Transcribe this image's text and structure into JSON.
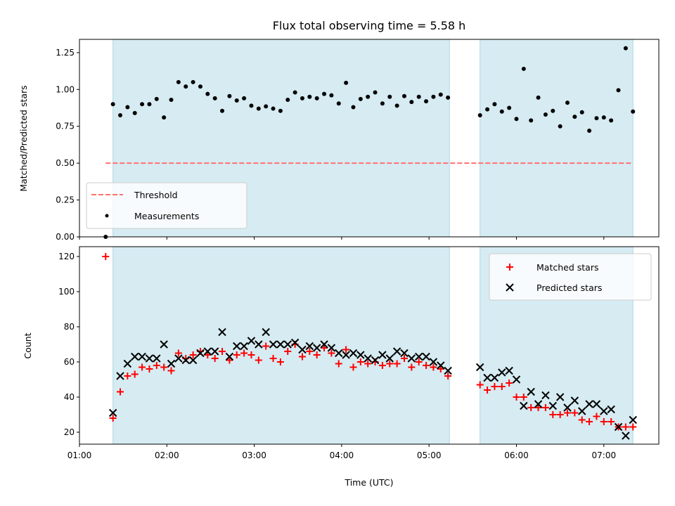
{
  "chart_data": [
    {
      "type": "scatter",
      "title": "Flux total observing time = 5.58 h",
      "xlabel": "",
      "ylabel": "Matched/Predicted stars",
      "ylim": [
        0,
        1.34
      ],
      "xlim_hours": [
        1.0,
        7.63
      ],
      "yticks": [
        "0.00",
        "0.25",
        "0.50",
        "0.75",
        "1.00",
        "1.25"
      ],
      "ytick_values": [
        0,
        0.25,
        0.5,
        0.75,
        1.0,
        1.25
      ],
      "shaded_spans": [
        [
          "01:23",
          "05:14"
        ],
        [
          "05:35",
          "07:20"
        ]
      ],
      "threshold": {
        "label": "Threshold",
        "value": 0.5,
        "from": "01:18",
        "to": "07:20",
        "color": "#ff7070"
      },
      "legend": {
        "placement": "lower-left",
        "entries": [
          "Threshold",
          "Measurements"
        ]
      },
      "series": [
        {
          "name": "Measurements",
          "color": "#000000",
          "segments": [
            {
              "start": "01:18",
              "step_min": 5,
              "values": [
                0.0,
                0.9,
                0.825,
                0.88,
                0.84,
                0.9,
                0.9,
                0.935,
                0.81,
                0.93,
                1.05,
                1.02,
                1.05,
                1.02,
                0.97,
                0.94,
                0.855,
                0.955,
                0.925,
                0.94,
                0.89,
                0.87,
                0.885,
                0.87,
                0.855,
                0.93,
                0.98,
                0.94,
                0.95,
                0.94,
                0.97,
                0.96,
                0.905,
                1.045,
                0.88,
                0.935,
                0.95,
                0.98,
                0.905,
                0.95,
                0.89,
                0.955,
                0.915,
                0.95,
                0.92,
                0.95,
                0.965,
                0.945
              ]
            },
            {
              "start": "05:35",
              "step_min": 5,
              "values": [
                0.825,
                0.865,
                0.9,
                0.85,
                0.875,
                0.8,
                1.14,
                0.79,
                0.945,
                0.83,
                0.855,
                0.75,
                0.91,
                0.815,
                0.845,
                0.72,
                0.805,
                0.81,
                0.79,
                0.995,
                1.28,
                0.85
              ]
            }
          ]
        }
      ]
    },
    {
      "type": "scatter",
      "title": "",
      "xlabel": "Time (UTC)",
      "ylabel": "Count",
      "ylim": [
        13.2,
        125.6
      ],
      "xlim_hours": [
        1.0,
        7.63
      ],
      "xticks": [
        "01:00",
        "02:00",
        "03:00",
        "04:00",
        "05:00",
        "06:00",
        "07:00"
      ],
      "xtick_hours": [
        1,
        2,
        3,
        4,
        5,
        6,
        7
      ],
      "yticks": [
        "20",
        "40",
        "60",
        "80",
        "100",
        "120"
      ],
      "ytick_values": [
        20,
        40,
        60,
        80,
        100,
        120
      ],
      "shaded_spans": [
        [
          "01:23",
          "05:14"
        ],
        [
          "05:35",
          "07:20"
        ]
      ],
      "legend": {
        "placement": "upper-right",
        "entries": [
          "Matched stars",
          "Predicted stars"
        ]
      },
      "series": [
        {
          "name": "Matched stars",
          "marker": "+",
          "color": "#ff0000",
          "segments": [
            {
              "start": "01:18",
              "step_min": 5,
              "values": [
                120,
                28,
                43,
                52,
                53,
                57,
                56,
                58,
                57,
                55,
                65,
                62,
                64,
                66,
                64,
                62,
                66,
                61,
                64,
                65,
                64,
                61,
                69,
                62,
                60,
                66,
                70,
                63,
                66,
                64,
                68,
                65,
                59,
                67,
                57,
                60,
                59,
                60,
                58,
                59,
                59,
                62,
                57,
                60,
                58,
                57,
                56,
                52
              ]
            },
            {
              "start": "05:35",
              "step_min": 5,
              "values": [
                47,
                44,
                46,
                46,
                48,
                40,
                40,
                34,
                34,
                34,
                30,
                30,
                31,
                31,
                27,
                26,
                29,
                26,
                26,
                23,
                23,
                23
              ]
            }
          ]
        },
        {
          "name": "Predicted stars",
          "marker": "x",
          "color": "#000000",
          "segments": [
            {
              "start": "01:18",
              "step_min": 5,
              "values": [
                null,
                31,
                52,
                59,
                63,
                63,
                62,
                62,
                70,
                59,
                62,
                61,
                61,
                65,
                66,
                66,
                77,
                63,
                69,
                69,
                72,
                70,
                77,
                70,
                70,
                70,
                71,
                67,
                69,
                68,
                70,
                68,
                65,
                64,
                65,
                64,
                62,
                61,
                64,
                62,
                66,
                65,
                62,
                63,
                63,
                60,
                58,
                55
              ]
            },
            {
              "start": "05:35",
              "step_min": 5,
              "values": [
                57,
                51,
                51,
                54,
                55,
                50,
                35,
                43,
                36,
                41,
                35,
                40,
                34,
                38,
                32,
                36,
                36,
                32,
                33,
                23,
                18,
                27
              ]
            }
          ]
        }
      ]
    }
  ],
  "colors": {
    "span": "#add8e6",
    "threshold": "#ff7070"
  }
}
